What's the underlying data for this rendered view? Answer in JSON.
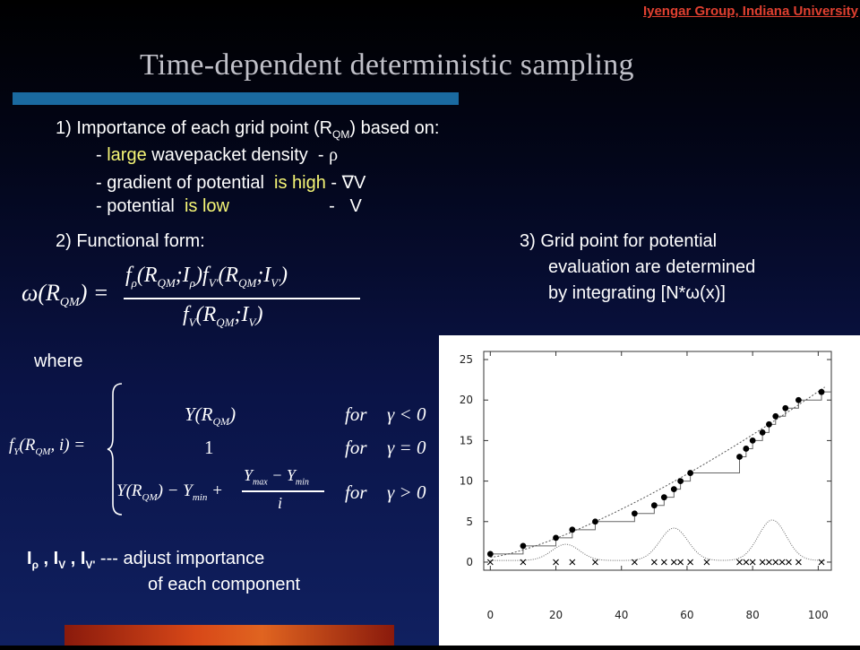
{
  "header": {
    "credit": "Iyengar Group, Indiana University",
    "title": "Time-dependent deterministic sampling"
  },
  "point1": {
    "lead": "1) Importance of each grid point (R",
    "lead_sub": "QM",
    "lead_end": ")  based on:",
    "items": [
      {
        "pre": "- ",
        "hl": "large",
        "mid": " wavepacket density  - ",
        "sym": "ρ"
      },
      {
        "pre": "- gradient of potential  ",
        "hl": "is high",
        "mid": " - ",
        "sym": "∇V"
      },
      {
        "pre": "- potential  ",
        "hl": "is low",
        "mid": "                    -   ",
        "sym": "V"
      }
    ]
  },
  "point2": {
    "label": "2) Functional form:"
  },
  "point3": {
    "line1": "3) Grid point for  potential",
    "line2": "evaluation are determined",
    "line3": "by integrating [N*ω(x)]"
  },
  "where_label": "where",
  "cases": {
    "row1": {
      "expr": "Y(R",
      "sub": "QM",
      "end": ")",
      "for": "for",
      "cond": "γ < 0"
    },
    "row2": {
      "expr": "1",
      "for": "for",
      "cond": "γ = 0"
    },
    "row3": {
      "for": "for",
      "cond": "γ > 0",
      "num": "Y",
      "den": "i"
    }
  },
  "adjust": {
    "line1": " --- adjust  importance",
    "line2": "of each component"
  },
  "chart_data": {
    "type": "scatter",
    "xlim": [
      -2,
      104
    ],
    "ylim": [
      -1,
      26
    ],
    "x_ticks": [
      "0",
      "20",
      "40",
      "60",
      "80",
      "100"
    ],
    "y_ticks": [
      "0",
      "5",
      "10",
      "15",
      "20",
      "25"
    ],
    "points": [
      [
        0,
        1
      ],
      [
        10,
        2
      ],
      [
        20,
        3
      ],
      [
        25,
        4
      ],
      [
        32,
        5
      ],
      [
        44,
        6
      ],
      [
        50,
        7
      ],
      [
        53,
        8
      ],
      [
        56,
        9
      ],
      [
        58,
        10
      ],
      [
        61,
        11
      ],
      [
        76,
        13
      ],
      [
        78,
        14
      ],
      [
        80,
        15
      ],
      [
        83,
        16
      ],
      [
        85,
        17
      ],
      [
        87,
        18
      ],
      [
        90,
        19
      ],
      [
        94,
        20
      ],
      [
        101,
        21
      ]
    ],
    "cross_x": [
      0,
      10,
      20,
      25,
      32,
      44,
      50,
      53,
      56,
      58,
      61,
      66,
      76,
      78,
      80,
      83,
      85,
      87,
      89,
      91,
      94,
      101
    ],
    "grid": false
  }
}
